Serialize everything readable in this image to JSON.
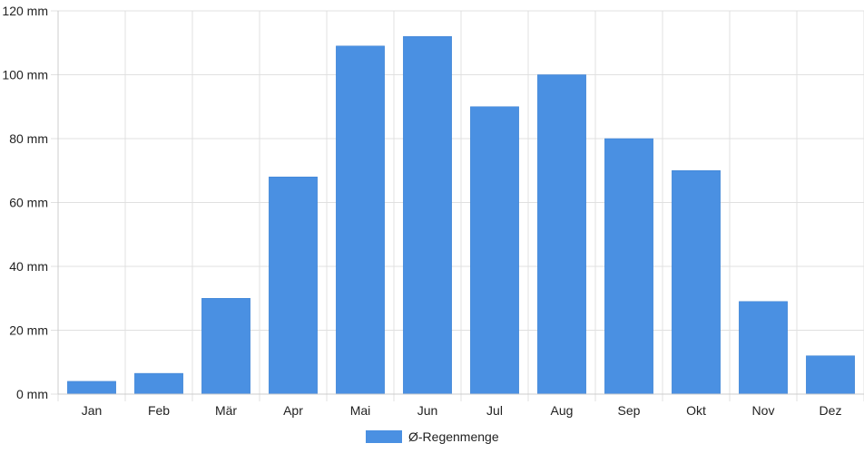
{
  "chart_data": {
    "type": "bar",
    "title": "",
    "xlabel": "",
    "ylabel": "",
    "categories": [
      "Jan",
      "Feb",
      "Mär",
      "Apr",
      "Mai",
      "Jun",
      "Jul",
      "Aug",
      "Sep",
      "Okt",
      "Nov",
      "Dez"
    ],
    "series": [
      {
        "name": "Ø-Regenmenge",
        "color": "#4a90e2",
        "values": [
          4,
          6.5,
          30,
          68,
          109,
          112,
          90,
          100,
          80,
          70,
          29,
          12
        ]
      }
    ],
    "ylim": [
      0,
      120
    ],
    "yticks": [
      0,
      20,
      40,
      60,
      80,
      100,
      120
    ],
    "ytick_labels": [
      "0 mm",
      "20 mm",
      "40 mm",
      "60 mm",
      "80 mm",
      "100 mm",
      "120 mm"
    ],
    "grid": true,
    "legend_position": "bottom-center",
    "grid_color": "#e0e0e0",
    "axis_color": "#cccccc"
  }
}
